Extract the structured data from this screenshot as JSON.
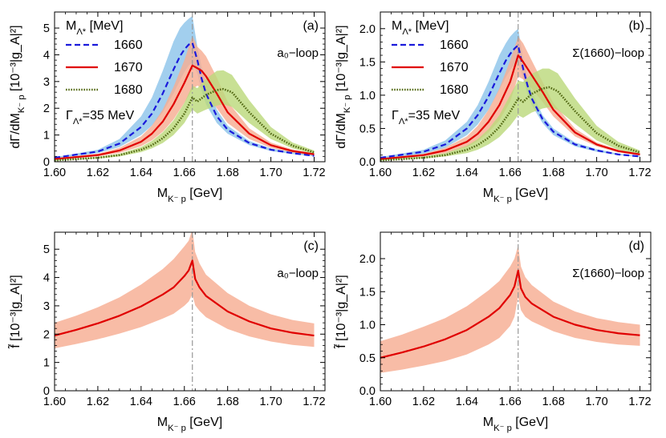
{
  "chart_data": [
    {
      "panel": "a",
      "type": "line",
      "tag": "(a)",
      "loop_label": "a₀−loop",
      "xlabel": "M_{K⁻ p} [GeV]",
      "ylabel": "dΓ/dM_{K⁻ p} [10⁻³|g_A|²]",
      "xlim": [
        1.6,
        1.725
      ],
      "ylim": [
        0,
        5.6
      ],
      "xticks": [
        "1.60",
        "1.62",
        "1.64",
        "1.66",
        "1.68",
        "1.70",
        "1.72"
      ],
      "yticks": [
        "0",
        "1",
        "2",
        "3",
        "4",
        "5"
      ],
      "threshold_x": 1.6637,
      "legend": {
        "title": "M_{Λ*} [MeV]",
        "note": "Γ_{Λ*}=35 MeV",
        "placement": "top-left"
      },
      "series": [
        {
          "name": "1660",
          "style": "dashed",
          "color": "#1a1adb",
          "band_color": "#8ec5ea",
          "x": [
            1.6,
            1.62,
            1.63,
            1.64,
            1.645,
            1.65,
            1.655,
            1.658,
            1.66,
            1.662,
            1.6637,
            1.666,
            1.668,
            1.67,
            1.675,
            1.68,
            1.69,
            1.7,
            1.71,
            1.72
          ],
          "y": [
            0.15,
            0.38,
            0.68,
            1.3,
            1.8,
            2.55,
            3.45,
            3.95,
            4.2,
            4.38,
            4.45,
            3.8,
            3.1,
            2.55,
            1.7,
            1.2,
            0.7,
            0.45,
            0.32,
            0.22
          ],
          "band_upper": [
            0.17,
            0.45,
            0.85,
            1.7,
            2.4,
            3.4,
            4.5,
            5.0,
            5.2,
            5.35,
            5.45,
            4.3,
            3.55,
            2.95,
            1.95,
            1.35,
            0.78,
            0.5,
            0.35,
            0.25
          ],
          "band_lower": [
            0.13,
            0.32,
            0.55,
            1.0,
            1.35,
            1.85,
            2.55,
            3.05,
            3.35,
            3.6,
            3.7,
            3.3,
            2.65,
            2.15,
            1.45,
            1.05,
            0.62,
            0.4,
            0.29,
            0.2
          ]
        },
        {
          "name": "1670",
          "style": "solid",
          "color": "#e00000",
          "band_color": "#f7ad92",
          "x": [
            1.6,
            1.62,
            1.63,
            1.64,
            1.645,
            1.65,
            1.655,
            1.66,
            1.6637,
            1.666,
            1.668,
            1.67,
            1.675,
            1.68,
            1.69,
            1.7,
            1.71,
            1.72
          ],
          "y": [
            0.1,
            0.25,
            0.42,
            0.75,
            1.05,
            1.5,
            2.15,
            2.95,
            3.6,
            3.5,
            3.4,
            3.2,
            2.55,
            1.85,
            1.05,
            0.62,
            0.4,
            0.28
          ],
          "band_upper": [
            0.12,
            0.3,
            0.52,
            0.95,
            1.35,
            1.95,
            2.8,
            3.8,
            4.7,
            4.3,
            4.15,
            3.95,
            3.15,
            2.25,
            1.25,
            0.72,
            0.46,
            0.32
          ],
          "band_lower": [
            0.08,
            0.2,
            0.33,
            0.58,
            0.8,
            1.12,
            1.58,
            2.2,
            2.7,
            2.85,
            2.75,
            2.55,
            2.0,
            1.45,
            0.85,
            0.52,
            0.34,
            0.24
          ]
        },
        {
          "name": "1680",
          "style": "dotted",
          "color": "#556b16",
          "band_color": "#bcd97d",
          "x": [
            1.6,
            1.62,
            1.63,
            1.64,
            1.645,
            1.65,
            1.655,
            1.66,
            1.6637,
            1.666,
            1.67,
            1.675,
            1.678,
            1.682,
            1.69,
            1.7,
            1.71,
            1.72
          ],
          "y": [
            0.05,
            0.15,
            0.25,
            0.45,
            0.62,
            0.88,
            1.25,
            1.8,
            2.4,
            2.25,
            2.5,
            2.68,
            2.72,
            2.6,
            1.85,
            1.05,
            0.6,
            0.35
          ],
          "band_upper": [
            0.06,
            0.18,
            0.3,
            0.55,
            0.78,
            1.1,
            1.55,
            2.2,
            2.85,
            2.75,
            3.1,
            3.4,
            3.42,
            3.25,
            2.3,
            1.3,
            0.72,
            0.42
          ],
          "band_lower": [
            0.04,
            0.12,
            0.2,
            0.36,
            0.5,
            0.7,
            1.0,
            1.45,
            1.95,
            1.8,
            1.95,
            2.1,
            2.15,
            2.05,
            1.45,
            0.85,
            0.5,
            0.3
          ]
        }
      ]
    },
    {
      "panel": "b",
      "type": "line",
      "tag": "(b)",
      "loop_label": "Σ(1660)−loop",
      "xlabel": "M_{K⁻ p} [GeV]",
      "ylabel": "dΓ/dM_{K⁻ p} [10⁻³|g_A|²]",
      "xlim": [
        1.6,
        1.725
      ],
      "ylim": [
        0,
        2.25
      ],
      "xticks": [
        "1.60",
        "1.62",
        "1.64",
        "1.66",
        "1.68",
        "1.70",
        "1.72"
      ],
      "yticks": [
        "0.0",
        "0.5",
        "1.0",
        "1.5",
        "2.0"
      ],
      "threshold_x": 1.6637,
      "legend": {
        "title": "M_{Λ*} [MeV]",
        "note": "Γ_{Λ*}=35 MeV",
        "placement": "top-left"
      },
      "series": [
        {
          "name": "1660",
          "style": "dashed",
          "color": "#1a1adb",
          "band_color": "#8ec5ea",
          "x": [
            1.6,
            1.62,
            1.63,
            1.64,
            1.645,
            1.65,
            1.655,
            1.658,
            1.66,
            1.662,
            1.6637,
            1.666,
            1.668,
            1.67,
            1.675,
            1.68,
            1.69,
            1.7,
            1.71,
            1.72
          ],
          "y": [
            0.06,
            0.15,
            0.26,
            0.5,
            0.7,
            0.98,
            1.33,
            1.52,
            1.62,
            1.7,
            1.75,
            1.4,
            1.15,
            0.95,
            0.64,
            0.45,
            0.26,
            0.17,
            0.11,
            0.08
          ],
          "band_upper": [
            0.07,
            0.18,
            0.32,
            0.6,
            0.85,
            1.2,
            1.6,
            1.78,
            1.88,
            1.95,
            2.0,
            1.55,
            1.28,
            1.05,
            0.7,
            0.5,
            0.29,
            0.19,
            0.12,
            0.09
          ],
          "band_lower": [
            0.05,
            0.12,
            0.21,
            0.4,
            0.56,
            0.78,
            1.08,
            1.27,
            1.38,
            1.46,
            1.5,
            1.25,
            1.02,
            0.85,
            0.58,
            0.4,
            0.23,
            0.15,
            0.1,
            0.07
          ]
        },
        {
          "name": "1670",
          "style": "solid",
          "color": "#e00000",
          "band_color": "#f7ad92",
          "x": [
            1.6,
            1.62,
            1.63,
            1.64,
            1.645,
            1.65,
            1.655,
            1.66,
            1.6637,
            1.666,
            1.67,
            1.675,
            1.68,
            1.69,
            1.7,
            1.71,
            1.72
          ],
          "y": [
            0.04,
            0.1,
            0.17,
            0.3,
            0.42,
            0.6,
            0.85,
            1.2,
            1.6,
            1.5,
            1.3,
            1.05,
            0.78,
            0.44,
            0.26,
            0.16,
            0.11
          ],
          "band_upper": [
            0.05,
            0.12,
            0.21,
            0.38,
            0.54,
            0.78,
            1.1,
            1.52,
            1.88,
            1.78,
            1.52,
            1.2,
            0.88,
            0.5,
            0.29,
            0.18,
            0.12
          ],
          "band_lower": [
            0.03,
            0.08,
            0.13,
            0.22,
            0.31,
            0.44,
            0.62,
            0.9,
            1.28,
            1.24,
            1.1,
            0.9,
            0.68,
            0.38,
            0.23,
            0.14,
            0.1
          ]
        },
        {
          "name": "1680",
          "style": "dotted",
          "color": "#556b16",
          "band_color": "#bcd97d",
          "x": [
            1.6,
            1.62,
            1.63,
            1.64,
            1.645,
            1.65,
            1.655,
            1.66,
            1.6637,
            1.666,
            1.67,
            1.675,
            1.678,
            1.682,
            1.69,
            1.7,
            1.71,
            1.72
          ],
          "y": [
            0.02,
            0.06,
            0.1,
            0.18,
            0.25,
            0.36,
            0.52,
            0.75,
            0.95,
            0.9,
            1.02,
            1.1,
            1.12,
            1.06,
            0.76,
            0.43,
            0.24,
            0.14
          ],
          "band_upper": [
            0.03,
            0.08,
            0.13,
            0.24,
            0.34,
            0.49,
            0.7,
            1.0,
            1.22,
            1.2,
            1.32,
            1.4,
            1.4,
            1.33,
            0.95,
            0.54,
            0.3,
            0.17
          ],
          "band_lower": [
            0.02,
            0.05,
            0.08,
            0.13,
            0.18,
            0.26,
            0.37,
            0.54,
            0.7,
            0.66,
            0.74,
            0.8,
            0.82,
            0.78,
            0.57,
            0.32,
            0.18,
            0.11
          ]
        }
      ]
    },
    {
      "panel": "c",
      "type": "line",
      "tag": "(c)",
      "loop_label": "a₀−loop",
      "xlabel": "M_{K⁻ p} [GeV]",
      "ylabel": "f̃ [10⁻³|g_A|²]",
      "xlim": [
        1.6,
        1.725
      ],
      "ylim": [
        0,
        5.6
      ],
      "xticks": [
        "1.60",
        "1.62",
        "1.64",
        "1.66",
        "1.68",
        "1.70",
        "1.72"
      ],
      "yticks": [
        "0",
        "1",
        "2",
        "3",
        "4",
        "5"
      ],
      "threshold_x": 1.6637,
      "series": [
        {
          "name": "f",
          "style": "solid",
          "color": "#e00000",
          "band_color": "#f7ad92",
          "x": [
            1.6,
            1.61,
            1.62,
            1.63,
            1.64,
            1.65,
            1.655,
            1.66,
            1.662,
            1.6637,
            1.665,
            1.667,
            1.67,
            1.68,
            1.69,
            1.7,
            1.71,
            1.72
          ],
          "y": [
            1.95,
            2.15,
            2.38,
            2.65,
            2.98,
            3.4,
            3.65,
            4.05,
            4.25,
            4.6,
            3.95,
            3.65,
            3.35,
            2.8,
            2.45,
            2.2,
            2.05,
            1.95
          ],
          "band_upper": [
            2.4,
            2.65,
            2.95,
            3.3,
            3.75,
            4.3,
            4.65,
            5.1,
            5.3,
            5.7,
            4.9,
            4.5,
            4.1,
            3.45,
            3.0,
            2.7,
            2.5,
            2.38
          ],
          "band_lower": [
            1.5,
            1.65,
            1.82,
            2.02,
            2.25,
            2.55,
            2.72,
            3.0,
            3.15,
            3.4,
            3.02,
            2.82,
            2.6,
            2.18,
            1.92,
            1.74,
            1.62,
            1.55
          ]
        }
      ]
    },
    {
      "panel": "d",
      "type": "line",
      "tag": "(d)",
      "loop_label": "Σ(1660)−loop",
      "xlabel": "M_{K⁻ p} [GeV]",
      "ylabel": "f̃ [10⁻³|g_A|²]",
      "xlim": [
        1.6,
        1.725
      ],
      "ylim": [
        0,
        2.4
      ],
      "xticks": [
        "1.60",
        "1.62",
        "1.64",
        "1.66",
        "1.68",
        "1.70",
        "1.72"
      ],
      "yticks": [
        "0.0",
        "0.5",
        "1.0",
        "1.5",
        "2.0"
      ],
      "threshold_x": 1.6637,
      "series": [
        {
          "name": "f",
          "style": "solid",
          "color": "#e00000",
          "band_color": "#f7ad92",
          "x": [
            1.6,
            1.61,
            1.62,
            1.63,
            1.64,
            1.65,
            1.655,
            1.66,
            1.662,
            1.6637,
            1.665,
            1.667,
            1.67,
            1.68,
            1.69,
            1.7,
            1.71,
            1.72
          ],
          "y": [
            0.5,
            0.58,
            0.67,
            0.78,
            0.92,
            1.12,
            1.25,
            1.45,
            1.58,
            1.82,
            1.55,
            1.42,
            1.32,
            1.12,
            1.0,
            0.92,
            0.87,
            0.84
          ],
          "band_upper": [
            0.75,
            0.85,
            0.97,
            1.1,
            1.28,
            1.52,
            1.66,
            1.88,
            2.0,
            2.2,
            1.88,
            1.72,
            1.6,
            1.35,
            1.2,
            1.1,
            1.04,
            1.0
          ],
          "band_lower": [
            0.27,
            0.32,
            0.38,
            0.45,
            0.55,
            0.7,
            0.8,
            0.98,
            1.12,
            1.42,
            1.22,
            1.12,
            1.05,
            0.9,
            0.8,
            0.74,
            0.7,
            0.68
          ]
        }
      ]
    }
  ]
}
